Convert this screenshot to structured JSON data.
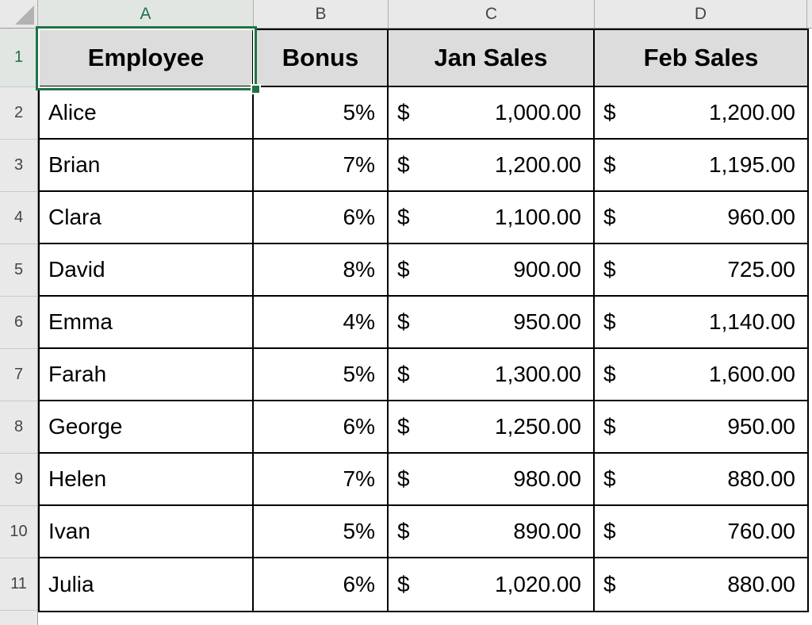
{
  "sheet": {
    "selected_cell": "A1",
    "column_headers": [
      "A",
      "B",
      "C",
      "D"
    ],
    "row_numbers": [
      "1",
      "2",
      "3",
      "4",
      "5",
      "6",
      "7",
      "8",
      "9",
      "10",
      "11"
    ]
  },
  "table": {
    "header_row": [
      "Employee",
      "Bonus",
      "Jan Sales",
      "Feb Sales"
    ],
    "currency_symbol": "$",
    "rows": [
      {
        "employee": "Alice",
        "bonus": "5%",
        "jan_sales": "1,000.00",
        "feb_sales": "1,200.00"
      },
      {
        "employee": "Brian",
        "bonus": "7%",
        "jan_sales": "1,200.00",
        "feb_sales": "1,195.00"
      },
      {
        "employee": "Clara",
        "bonus": "6%",
        "jan_sales": "1,100.00",
        "feb_sales": "960.00"
      },
      {
        "employee": "David",
        "bonus": "8%",
        "jan_sales": "900.00",
        "feb_sales": "725.00"
      },
      {
        "employee": "Emma",
        "bonus": "4%",
        "jan_sales": "950.00",
        "feb_sales": "1,140.00"
      },
      {
        "employee": "Farah",
        "bonus": "5%",
        "jan_sales": "1,300.00",
        "feb_sales": "1,600.00"
      },
      {
        "employee": "George",
        "bonus": "6%",
        "jan_sales": "1,250.00",
        "feb_sales": "950.00"
      },
      {
        "employee": "Helen",
        "bonus": "7%",
        "jan_sales": "980.00",
        "feb_sales": "880.00"
      },
      {
        "employee": "Ivan",
        "bonus": "5%",
        "jan_sales": "890.00",
        "feb_sales": "760.00"
      },
      {
        "employee": "Julia",
        "bonus": "6%",
        "jan_sales": "1,020.00",
        "feb_sales": "880.00"
      }
    ]
  },
  "colors": {
    "selection_green": "#217346",
    "header_strip_fill": "#E9E9E9",
    "table_header_fill": "#DCDCDC",
    "cell_border": "#000000",
    "header_text": "#43434B"
  }
}
